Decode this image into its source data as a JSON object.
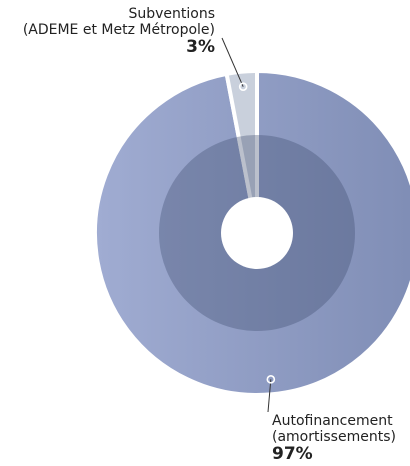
{
  "chart_data": {
    "type": "pie",
    "categories": [
      [
        "Autofinancement",
        "(amortissements)"
      ],
      [
        "Subventions",
        "(ADEME et Metz Métropole)"
      ]
    ],
    "values": [
      97,
      3
    ],
    "value_labels": [
      "97%",
      "3%"
    ],
    "colors": [
      "#8e9bc4",
      "#c9d0dc"
    ]
  }
}
